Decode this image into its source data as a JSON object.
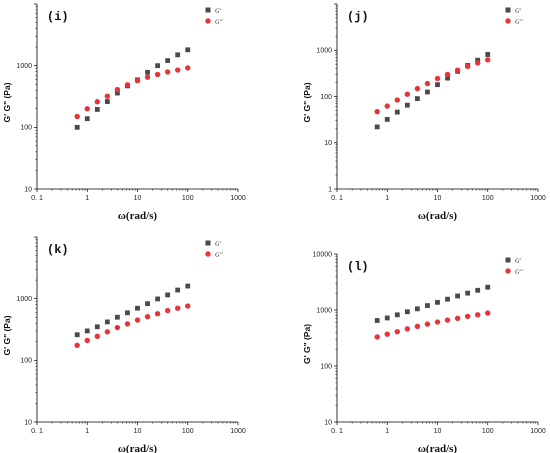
{
  "colors": {
    "g_prime": "#4a4a4a",
    "g_double_prime": "#e8333a",
    "axis": "#000000"
  },
  "chart_data": [
    {
      "type": "scatter",
      "panel_label": "(i)",
      "xlabel": "ω(rad/s)",
      "ylabel": "G' G\" (Pa)",
      "x_scale": "log",
      "y_scale": "log",
      "xlim": [
        0.1,
        1000
      ],
      "ylim": [
        10,
        10000
      ],
      "x_ticks": [
        "0. 1",
        "1",
        "10",
        "100",
        "1000"
      ],
      "y_ticks": [
        "10",
        "100",
        "1000"
      ],
      "legend_position": "top-right",
      "x": [
        0.631,
        1.0,
        1.585,
        2.512,
        3.981,
        6.31,
        10.0,
        15.85,
        25.12,
        39.81,
        63.1,
        100.0
      ],
      "series": [
        {
          "name": "G'",
          "marker": "square",
          "values": [
            100,
            138,
            195,
            262,
            360,
            470,
            590,
            780,
            1000,
            1210,
            1500,
            1810
          ]
        },
        {
          "name": "G\"",
          "marker": "circle",
          "values": [
            150,
            200,
            260,
            320,
            410,
            490,
            570,
            650,
            720,
            790,
            850,
            920
          ]
        }
      ]
    },
    {
      "type": "scatter",
      "panel_label": "(j)",
      "xlabel": "ω(rad/s)",
      "ylabel": "G' G\" (Pa)",
      "x_scale": "log",
      "y_scale": "log",
      "xlim": [
        0.1,
        1000
      ],
      "ylim": [
        1,
        10000
      ],
      "x_ticks": [
        "0. 1",
        "1",
        "10",
        "100",
        "1000"
      ],
      "y_ticks": [
        "1",
        "10",
        "100",
        "1000"
      ],
      "legend_position": "top-right",
      "x": [
        0.631,
        1.0,
        1.585,
        2.512,
        3.981,
        6.31,
        10.0,
        15.85,
        25.12,
        39.81,
        63.1,
        100.0
      ],
      "series": [
        {
          "name": "G'",
          "marker": "square",
          "values": [
            22,
            32,
            46,
            65,
            90,
            125,
            180,
            250,
            350,
            470,
            610,
            810
          ]
        },
        {
          "name": "G\"",
          "marker": "circle",
          "values": [
            47,
            62,
            84,
            112,
            148,
            190,
            245,
            300,
            370,
            450,
            530,
            620
          ]
        }
      ]
    },
    {
      "type": "scatter",
      "panel_label": "(k)",
      "xlabel": "ω(rad/s)",
      "ylabel": "G' G\" (Pa)",
      "x_scale": "log",
      "y_scale": "log",
      "xlim": [
        0.1,
        1000
      ],
      "ylim": [
        10,
        10000
      ],
      "x_ticks": [
        "0. 1",
        "1",
        "10",
        "100",
        "1000"
      ],
      "y_ticks": [
        "10",
        "100",
        "1000"
      ],
      "legend_position": "top-right",
      "x": [
        0.631,
        1.0,
        1.585,
        2.512,
        3.981,
        6.31,
        10.0,
        15.85,
        25.12,
        39.81,
        63.1,
        100.0
      ],
      "series": [
        {
          "name": "G'",
          "marker": "square",
          "values": [
            260,
            300,
            350,
            420,
            500,
            590,
            700,
            830,
            990,
            1150,
            1380,
            1600
          ]
        },
        {
          "name": "G\"",
          "marker": "circle",
          "values": [
            175,
            210,
            245,
            290,
            340,
            390,
            450,
            510,
            570,
            640,
            700,
            760
          ]
        }
      ]
    },
    {
      "type": "scatter",
      "panel_label": "(l)",
      "xlabel": "ω(rad/s)",
      "ylabel": "G' G\" (Pa)",
      "x_scale": "log",
      "y_scale": "log",
      "xlim": [
        0.1,
        1000
      ],
      "ylim": [
        10,
        10000
      ],
      "x_ticks": [
        "0. 1",
        "1",
        "10",
        "100",
        "1000"
      ],
      "y_ticks": [
        "10",
        "100",
        "1000",
        "10000"
      ],
      "legend_position": "top-right",
      "x": [
        0.631,
        1.0,
        1.585,
        2.512,
        3.981,
        6.31,
        10.0,
        15.85,
        25.12,
        39.81,
        63.1,
        100.0
      ],
      "series": [
        {
          "name": "G'",
          "marker": "square",
          "values": [
            650,
            720,
            820,
            930,
            1050,
            1200,
            1370,
            1560,
            1780,
            2000,
            2250,
            2550
          ]
        },
        {
          "name": "G\"",
          "marker": "circle",
          "values": [
            330,
            370,
            410,
            460,
            510,
            560,
            610,
            660,
            710,
            770,
            820,
            880
          ]
        }
      ]
    }
  ]
}
